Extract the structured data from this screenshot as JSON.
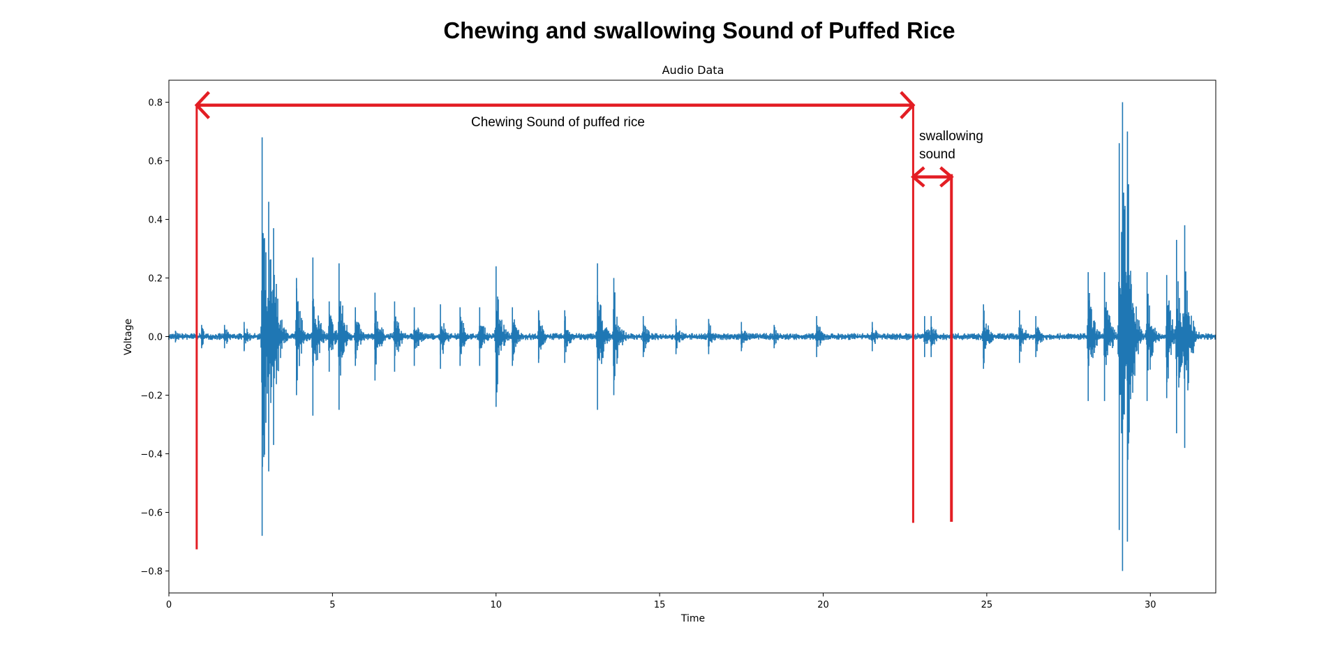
{
  "figure": {
    "title": "Chewing and swallowing Sound of Puffed Rice"
  },
  "chart_data": {
    "type": "line",
    "title": "Audio Data",
    "xlabel": "Time",
    "ylabel": "Voltage",
    "xlim": [
      0,
      32
    ],
    "ylim": [
      -0.875,
      0.875
    ],
    "xticks": [
      0,
      5,
      10,
      15,
      20,
      25,
      30
    ],
    "yticks": [
      0.8,
      0.6,
      0.4,
      0.2,
      0.0,
      -0.2,
      -0.4,
      -0.6,
      -0.8
    ],
    "xtick_labels": [
      "0",
      "5",
      "10",
      "15",
      "20",
      "25",
      "30"
    ],
    "ytick_labels": [
      "0.8",
      "0.6",
      "0.4",
      "0.2",
      "0.0",
      "−0.2",
      "−0.4",
      "−0.6",
      "−0.8"
    ],
    "grid": false,
    "series": [
      {
        "color": "#1f77b4",
        "bursts": [
          {
            "t": 0.2,
            "amp": 0.02
          },
          {
            "t": 1.0,
            "amp": 0.04
          },
          {
            "t": 1.7,
            "amp": 0.04
          },
          {
            "t": 2.3,
            "amp": 0.05
          },
          {
            "t": 2.85,
            "amp": 0.68
          },
          {
            "t": 3.05,
            "amp": 0.46
          },
          {
            "t": 3.2,
            "amp": 0.37
          },
          {
            "t": 3.9,
            "amp": 0.2
          },
          {
            "t": 4.4,
            "amp": 0.27
          },
          {
            "t": 4.9,
            "amp": 0.12
          },
          {
            "t": 5.2,
            "amp": 0.25
          },
          {
            "t": 5.7,
            "amp": 0.1
          },
          {
            "t": 6.3,
            "amp": 0.15
          },
          {
            "t": 6.9,
            "amp": 0.12
          },
          {
            "t": 7.5,
            "amp": 0.1
          },
          {
            "t": 8.3,
            "amp": 0.11
          },
          {
            "t": 8.9,
            "amp": 0.1
          },
          {
            "t": 9.5,
            "amp": 0.1
          },
          {
            "t": 10.0,
            "amp": 0.24
          },
          {
            "t": 10.5,
            "amp": 0.1
          },
          {
            "t": 11.3,
            "amp": 0.09
          },
          {
            "t": 12.1,
            "amp": 0.09
          },
          {
            "t": 13.1,
            "amp": 0.25
          },
          {
            "t": 13.6,
            "amp": 0.2
          },
          {
            "t": 14.5,
            "amp": 0.07
          },
          {
            "t": 15.5,
            "amp": 0.06
          },
          {
            "t": 16.5,
            "amp": 0.06
          },
          {
            "t": 17.5,
            "amp": 0.05
          },
          {
            "t": 18.5,
            "amp": 0.04
          },
          {
            "t": 19.8,
            "amp": 0.07
          },
          {
            "t": 21.5,
            "amp": 0.05
          },
          {
            "t": 23.1,
            "amp": 0.07
          },
          {
            "t": 23.3,
            "amp": 0.07
          },
          {
            "t": 24.9,
            "amp": 0.11
          },
          {
            "t": 26.0,
            "amp": 0.09
          },
          {
            "t": 26.5,
            "amp": 0.07
          },
          {
            "t": 28.1,
            "amp": 0.22
          },
          {
            "t": 28.6,
            "amp": 0.22
          },
          {
            "t": 29.05,
            "amp": 0.66
          },
          {
            "t": 29.15,
            "amp": 0.8
          },
          {
            "t": 29.3,
            "amp": 0.7
          },
          {
            "t": 29.9,
            "amp": 0.22
          },
          {
            "t": 30.5,
            "amp": 0.21
          },
          {
            "t": 30.8,
            "amp": 0.33
          },
          {
            "t": 31.05,
            "amp": 0.38
          }
        ]
      }
    ]
  },
  "annotations": {
    "chewing_label": "Chewing Sound of puffed rice",
    "swallowing_label_line1": "swallowing",
    "swallowing_label_line2": "sound",
    "color": "#e31e24",
    "chewing_range": {
      "t_start": 0.85,
      "t_end": 22.75,
      "level": 0.79
    },
    "swallowing_range": {
      "t_start": 22.75,
      "t_end": 23.92,
      "level": 0.545
    }
  }
}
